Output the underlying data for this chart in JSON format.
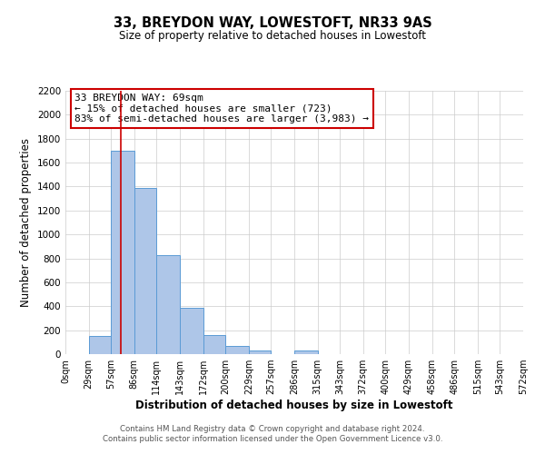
{
  "title": "33, BREYDON WAY, LOWESTOFT, NR33 9AS",
  "subtitle": "Size of property relative to detached houses in Lowestoft",
  "xlabel": "Distribution of detached houses by size in Lowestoft",
  "ylabel": "Number of detached properties",
  "bin_edges": [
    0,
    29,
    57,
    86,
    114,
    143,
    172,
    200,
    229,
    257,
    286,
    315,
    343,
    372,
    400,
    429,
    458,
    486,
    515,
    543,
    572
  ],
  "bin_labels": [
    "0sqm",
    "29sqm",
    "57sqm",
    "86sqm",
    "114sqm",
    "143sqm",
    "172sqm",
    "200sqm",
    "229sqm",
    "257sqm",
    "286sqm",
    "315sqm",
    "343sqm",
    "372sqm",
    "400sqm",
    "429sqm",
    "458sqm",
    "486sqm",
    "515sqm",
    "543sqm",
    "572sqm"
  ],
  "bar_heights": [
    0,
    155,
    1700,
    1390,
    830,
    390,
    160,
    65,
    30,
    0,
    30,
    0,
    0,
    0,
    0,
    0,
    0,
    0,
    0,
    0
  ],
  "bar_color": "#aec6e8",
  "bar_edge_color": "#5b9bd5",
  "ylim": [
    0,
    2200
  ],
  "yticks": [
    0,
    200,
    400,
    600,
    800,
    1000,
    1200,
    1400,
    1600,
    1800,
    2000,
    2200
  ],
  "vline_x": 69,
  "vline_color": "#cc0000",
  "annotation_box_text": "33 BREYDON WAY: 69sqm\n← 15% of detached houses are smaller (723)\n83% of semi-detached houses are larger (3,983) →",
  "annotation_box_color": "#cc0000",
  "footer_line1": "Contains HM Land Registry data © Crown copyright and database right 2024.",
  "footer_line2": "Contains public sector information licensed under the Open Government Licence v3.0.",
  "background_color": "#ffffff",
  "grid_color": "#cccccc"
}
